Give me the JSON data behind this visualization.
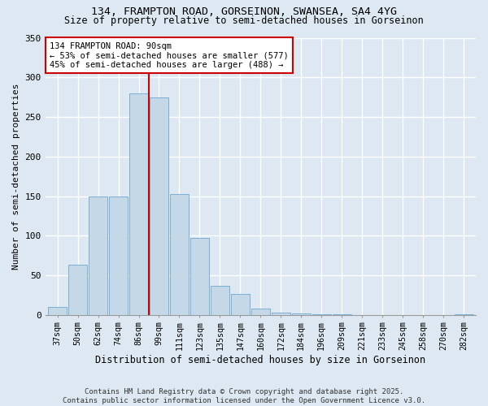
{
  "title1": "134, FRAMPTON ROAD, GORSEINON, SWANSEA, SA4 4YG",
  "title2": "Size of property relative to semi-detached houses in Gorseinon",
  "xlabel": "Distribution of semi-detached houses by size in Gorseinon",
  "ylabel": "Number of semi-detached properties",
  "bar_labels": [
    "37sqm",
    "50sqm",
    "62sqm",
    "74sqm",
    "86sqm",
    "99sqm",
    "111sqm",
    "123sqm",
    "135sqm",
    "147sqm",
    "160sqm",
    "172sqm",
    "184sqm",
    "196sqm",
    "209sqm",
    "221sqm",
    "233sqm",
    "245sqm",
    "258sqm",
    "270sqm",
    "282sqm"
  ],
  "bar_values": [
    10,
    63,
    150,
    150,
    280,
    275,
    153,
    97,
    37,
    26,
    8,
    3,
    2,
    1,
    1,
    0,
    0,
    0,
    0,
    0,
    1
  ],
  "bar_color": "#c5d8e8",
  "bar_edge_color": "#7bafd4",
  "vline_color": "#cc0000",
  "annotation_title": "134 FRAMPTON ROAD: 90sqm",
  "annotation_line1": "← 53% of semi-detached houses are smaller (577)",
  "annotation_line2": "45% of semi-detached houses are larger (488) →",
  "ylim": [
    0,
    350
  ],
  "yticks": [
    0,
    50,
    100,
    150,
    200,
    250,
    300,
    350
  ],
  "footer1": "Contains HM Land Registry data © Crown copyright and database right 2025.",
  "footer2": "Contains public sector information licensed under the Open Government Licence v3.0.",
  "bg_color": "#dde8f2",
  "plot_bg_color": "#dde8f2"
}
